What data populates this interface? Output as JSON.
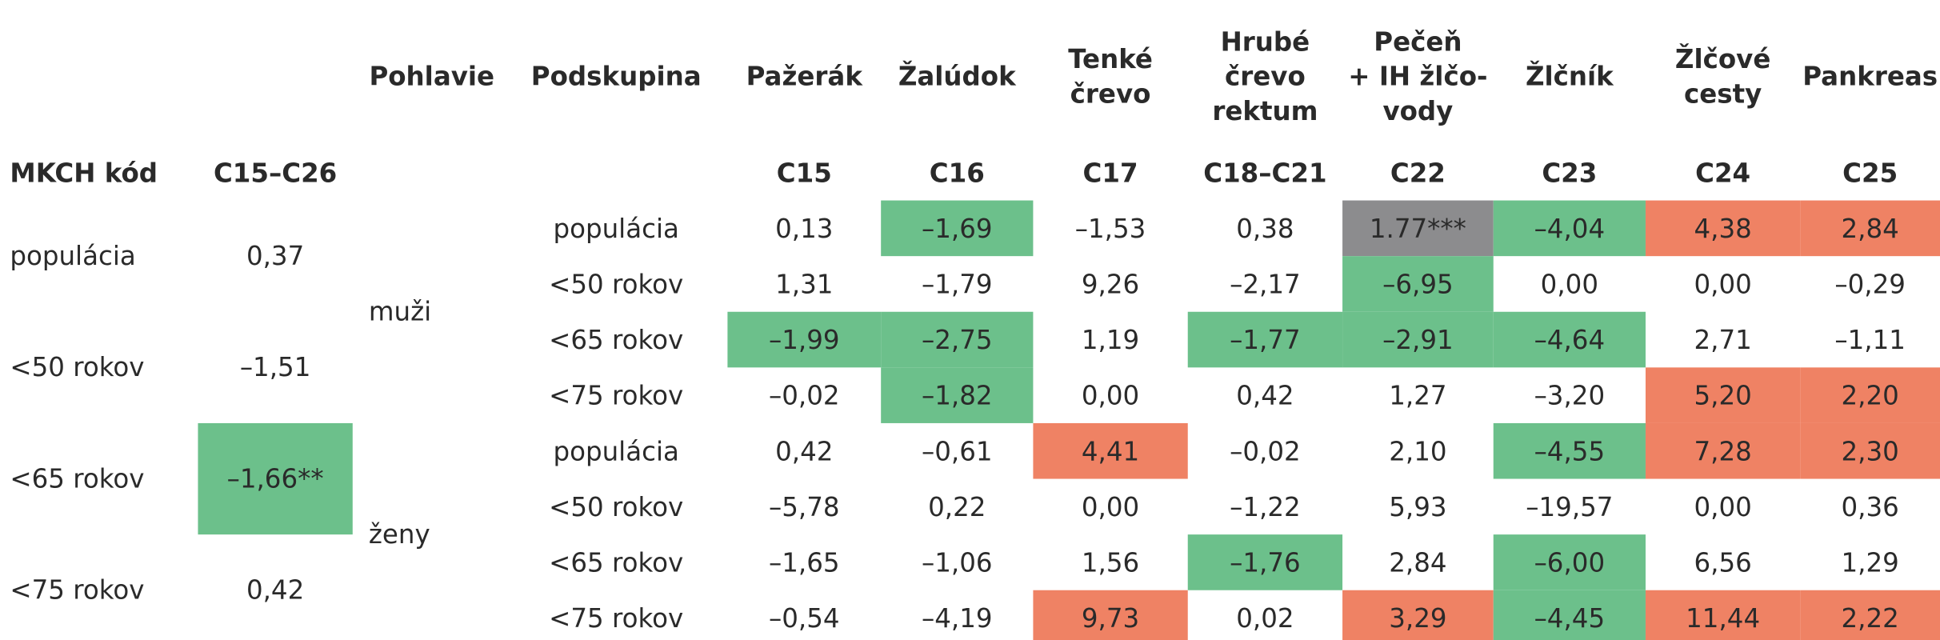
{
  "header_row": [
    "Pohlavie",
    "Podskupina",
    "Pažerák",
    "Žalúdok",
    "Tenké\nčrevo",
    "Hrubé\nčrevo\nrektum",
    "Pečeň\n+ IH žlčo-\nvody",
    "Žlčník",
    "Žlčové\ncesty",
    "Pankreas"
  ],
  "code_row": {
    "label": "MKCH kód",
    "total": "C15–C26",
    "codes": [
      "C15",
      "C16",
      "C17",
      "C18–C21",
      "C22",
      "C23",
      "C24",
      "C25"
    ]
  },
  "summary_rows": [
    {
      "label": "populácia",
      "value": "0,37",
      "color": null
    },
    {
      "label": "<50 rokov",
      "value": "–1,51",
      "color": null
    },
    {
      "label": "<65 rokov",
      "value": "–1,66**",
      "color": "#6cc08b"
    },
    {
      "label": "<75 rokov",
      "value": "0,42",
      "color": null
    }
  ],
  "groups": [
    "muži",
    "ženy"
  ],
  "rows": [
    {
      "sub": "populácia",
      "values": [
        "0,13",
        "–1,69",
        "–1,53",
        "0,38",
        "1.77***",
        "–4,04",
        "4,38",
        "2,84"
      ],
      "colors": [
        null,
        "#6cc08b",
        null,
        null,
        "#8c8c8e",
        "#6cc08b",
        "#ef8264",
        "#ef8264"
      ]
    },
    {
      "sub": "<50 rokov",
      "values": [
        "1,31",
        "–1,79",
        "9,26",
        "–2,17",
        "–6,95",
        "0,00",
        "0,00",
        "–0,29"
      ],
      "colors": [
        null,
        null,
        null,
        null,
        "#6cc08b",
        null,
        null,
        null
      ]
    },
    {
      "sub": "<65 rokov",
      "values": [
        "–1,99",
        "–2,75",
        "1,19",
        "–1,77",
        "–2,91",
        "–4,64",
        "2,71",
        "–1,11"
      ],
      "colors": [
        "#6cc08b",
        "#6cc08b",
        null,
        "#6cc08b",
        "#6cc08b",
        "#6cc08b",
        null,
        null
      ]
    },
    {
      "sub": "<75 rokov",
      "values": [
        "–0,02",
        "–1,82",
        "0,00",
        "0,42",
        "1,27",
        "–3,20",
        "5,20",
        "2,20"
      ],
      "colors": [
        null,
        "#6cc08b",
        null,
        null,
        null,
        null,
        "#ef8264",
        "#ef8264"
      ]
    },
    {
      "sub": "populácia",
      "values": [
        "0,42",
        "–0,61",
        "4,41",
        "–0,02",
        "2,10",
        "–4,55",
        "7,28",
        "2,30"
      ],
      "colors": [
        null,
        null,
        "#ef8264",
        null,
        null,
        "#6cc08b",
        "#ef8264",
        "#ef8264"
      ]
    },
    {
      "sub": "<50 rokov",
      "values": [
        "–5,78",
        "0,22",
        "0,00",
        "–1,22",
        "5,93",
        "–19,57",
        "0,00",
        "0,36"
      ],
      "colors": [
        null,
        null,
        null,
        null,
        null,
        null,
        null,
        null
      ]
    },
    {
      "sub": "<65 rokov",
      "values": [
        "–1,65",
        "–1,06",
        "1,56",
        "–1,76",
        "2,84",
        "–6,00",
        "6,56",
        "1,29"
      ],
      "colors": [
        null,
        null,
        null,
        "#6cc08b",
        null,
        "#6cc08b",
        null,
        null
      ]
    },
    {
      "sub": "<75 rokov",
      "values": [
        "–0,54",
        "–4,19",
        "9,73",
        "0,02",
        "3,29",
        "–4,45",
        "11,44",
        "2,22"
      ],
      "colors": [
        null,
        null,
        "#ef8264",
        null,
        "#ef8264",
        "#6cc08b",
        "#ef8264",
        "#ef8264"
      ]
    }
  ]
}
